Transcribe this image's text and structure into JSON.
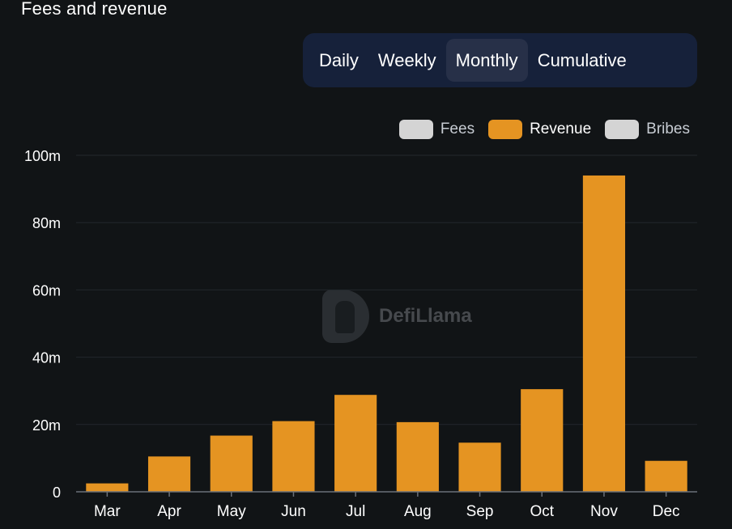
{
  "header": {
    "title": "Fees and revenue"
  },
  "tabs": [
    {
      "label": "Daily",
      "active": false
    },
    {
      "label": "Weekly",
      "active": false
    },
    {
      "label": "Monthly",
      "active": true
    },
    {
      "label": "Cumulative",
      "active": false
    }
  ],
  "legend": [
    {
      "label": "Fees",
      "color": "#d4d4d4",
      "active": false
    },
    {
      "label": "Revenue",
      "color": "#e59422",
      "active": true
    },
    {
      "label": "Bribes",
      "color": "#d4d4d4",
      "active": false
    }
  ],
  "watermark": {
    "text": "DefiLlama",
    "icon": "llama-logo-icon"
  },
  "chart_data": {
    "type": "bar",
    "categories": [
      "Mar",
      "Apr",
      "May",
      "Jun",
      "Jul",
      "Aug",
      "Sep",
      "Oct",
      "Nov",
      "Dec"
    ],
    "series": [
      {
        "name": "Revenue",
        "color": "#e59422",
        "values": [
          2.5,
          10.5,
          16.7,
          21.0,
          28.8,
          20.7,
          14.6,
          30.5,
          94.0,
          9.2
        ]
      }
    ],
    "yticks": [
      "0",
      "20m",
      "40m",
      "60m",
      "80m",
      "100m"
    ],
    "ylim": [
      0,
      100
    ],
    "grid": true
  }
}
